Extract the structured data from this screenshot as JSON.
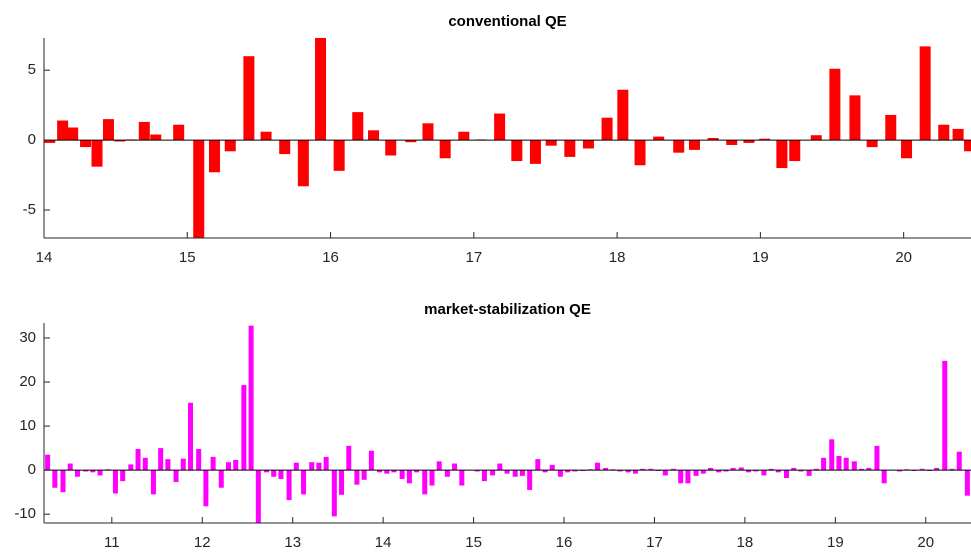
{
  "chart_data": [
    {
      "type": "bar",
      "title": "conventional QE",
      "color": "#ff0000",
      "x": [
        14.04,
        14.13,
        14.2,
        14.29,
        14.37,
        14.45,
        14.53,
        14.61,
        14.7,
        14.78,
        14.94,
        15.08,
        15.19,
        15.3,
        15.43,
        15.55,
        15.68,
        15.81,
        15.93,
        16.06,
        16.19,
        16.3,
        16.42,
        16.56,
        16.68,
        16.8,
        16.93,
        17.05,
        17.18,
        17.3,
        17.43,
        17.54,
        17.67,
        17.8,
        17.93,
        18.04,
        18.16,
        18.29,
        18.43,
        18.54,
        18.67,
        18.8,
        18.92,
        19.03,
        19.15,
        19.24,
        19.39,
        19.52,
        19.66,
        19.78,
        19.91,
        20.02,
        20.15,
        20.28,
        20.38,
        20.46
      ],
      "values": [
        -0.2,
        1.4,
        0.9,
        -0.5,
        -1.9,
        1.5,
        -0.1,
        0.05,
        1.3,
        0.4,
        1.1,
        -7.5,
        -2.3,
        -0.8,
        6.0,
        0.6,
        -1.0,
        -3.3,
        7.3,
        -2.2,
        2.0,
        0.7,
        -1.1,
        -0.15,
        1.2,
        -1.3,
        0.6,
        0.05,
        1.9,
        -1.5,
        -1.7,
        -0.4,
        -1.2,
        -0.6,
        1.6,
        3.6,
        -1.8,
        0.25,
        -0.9,
        -0.7,
        0.15,
        -0.35,
        -0.2,
        0.1,
        -2.0,
        -1.5,
        0.35,
        5.1,
        3.2,
        -0.5,
        1.8,
        -1.3,
        6.7,
        1.1,
        0.8,
        -0.8
      ],
      "xlim": [
        14,
        20.47
      ],
      "xticks": [
        14,
        15,
        16,
        17,
        18,
        19,
        20
      ],
      "ylim": [
        -7,
        7.3
      ],
      "yticks": [
        -5,
        0,
        5
      ]
    },
    {
      "type": "bar",
      "title": "market-stabilization QE",
      "color": "#ff00ff",
      "x": [
        10.29,
        10.37,
        10.46,
        10.54,
        10.62,
        10.71,
        10.79,
        10.87,
        10.96,
        11.04,
        11.12,
        11.21,
        11.29,
        11.37,
        11.46,
        11.54,
        11.62,
        11.71,
        11.79,
        11.87,
        11.96,
        12.04,
        12.12,
        12.21,
        12.29,
        12.37,
        12.46,
        12.54,
        12.62,
        12.71,
        12.79,
        12.87,
        12.96,
        13.04,
        13.12,
        13.21,
        13.29,
        13.37,
        13.46,
        13.54,
        13.62,
        13.71,
        13.79,
        13.87,
        13.96,
        14.04,
        14.12,
        14.21,
        14.29,
        14.37,
        14.46,
        14.54,
        14.62,
        14.71,
        14.79,
        14.87,
        14.96,
        15.04,
        15.12,
        15.21,
        15.29,
        15.37,
        15.46,
        15.54,
        15.62,
        15.71,
        15.79,
        15.87,
        15.96,
        16.04,
        16.12,
        16.21,
        16.29,
        16.37,
        16.46,
        16.54,
        16.62,
        16.71,
        16.79,
        16.87,
        16.96,
        17.04,
        17.12,
        17.21,
        17.29,
        17.37,
        17.46,
        17.54,
        17.62,
        17.71,
        17.79,
        17.87,
        17.96,
        18.04,
        18.12,
        18.21,
        18.29,
        18.37,
        18.46,
        18.54,
        18.62,
        18.71,
        18.79,
        18.87,
        18.96,
        19.04,
        19.12,
        19.21,
        19.29,
        19.37,
        19.46,
        19.54,
        19.62,
        19.71,
        19.79,
        19.87,
        19.96,
        20.04,
        20.12,
        20.21,
        20.29,
        20.37,
        20.46
      ],
      "values": [
        3.5,
        -4.0,
        -5.0,
        1.5,
        -1.5,
        -0.3,
        -0.5,
        -1.2,
        0.2,
        -5.3,
        -2.5,
        1.3,
        4.8,
        2.8,
        -5.5,
        5.0,
        2.5,
        -2.7,
        2.6,
        15.3,
        4.8,
        -8.2,
        3.0,
        -4.0,
        1.8,
        2.3,
        19.3,
        32.8,
        -12.5,
        -0.5,
        -1.5,
        -2.0,
        -6.8,
        1.7,
        -5.5,
        1.8,
        1.7,
        3.0,
        -10.5,
        -5.6,
        5.5,
        -3.3,
        -2.2,
        4.4,
        -0.5,
        -0.8,
        -0.5,
        -2.0,
        -3.0,
        -0.5,
        -5.5,
        -3.5,
        2.0,
        -1.5,
        1.5,
        -3.5,
        0,
        -0.3,
        -2.5,
        -1.2,
        1.5,
        -0.8,
        -1.5,
        -1.3,
        -4.5,
        2.5,
        -0.5,
        1.2,
        -1.5,
        -0.5,
        -0.3,
        -0.2,
        0.2,
        1.7,
        0.5,
        0.2,
        -0.3,
        -0.5,
        -0.8,
        0.3,
        0.3,
        -0.2,
        -1.2,
        0.3,
        -3.0,
        -3.0,
        -1.3,
        -0.8,
        0.5,
        -0.5,
        -0.3,
        0.5,
        0.6,
        -0.5,
        -0.3,
        -1.2,
        0.3,
        -0.5,
        -1.8,
        0.5,
        -0.3,
        -1.3,
        0.3,
        2.8,
        7.0,
        3.2,
        2.8,
        2.0,
        0.3,
        0.5,
        5.5,
        -3.0,
        0,
        -0.3,
        0.2,
        -0.2,
        0.3,
        -0.2,
        0.5,
        24.8,
        0.3,
        4.2,
        -5.8
      ],
      "xlim": [
        10.25,
        20.5
      ],
      "xticks": [
        11,
        12,
        13,
        14,
        15,
        16,
        17,
        18,
        19,
        20
      ],
      "ylim": [
        -12,
        33.4
      ],
      "yticks": [
        -10,
        0,
        10,
        20,
        30
      ]
    }
  ]
}
